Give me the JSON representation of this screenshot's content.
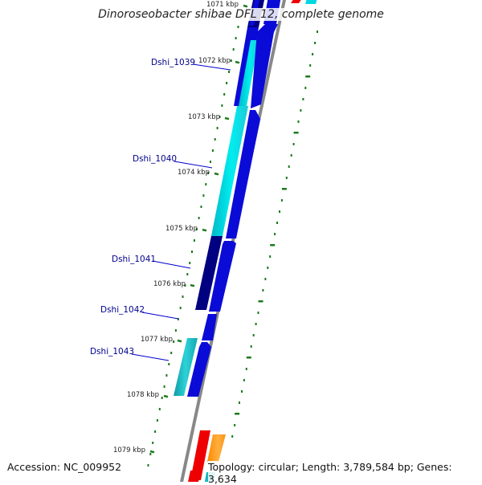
{
  "title": "Dinoroseobacter shibae DFL 12, complete genome",
  "footer": {
    "accession": "Accession: NC_009952",
    "summary": "Topology: circular; Length: 3,789,584 bp; Genes: 3,634"
  },
  "kbp_labels": [
    "1071 kbp",
    "1072 kbp",
    "1073 kbp",
    "1074 kbp",
    "1075 kbp",
    "1076 kbp",
    "1077 kbp",
    "1078 kbp",
    "1079 kbp"
  ],
  "gene_labels": [
    "Dshi_1039",
    "Dshi_1040",
    "Dshi_1041",
    "Dshi_1042",
    "Dshi_1043"
  ],
  "colors": {
    "kbp_tick": "#1a7a1a",
    "gc_dots": "#1a7a1a",
    "backbone": "#888888",
    "cds_blue": "#0b0bd8",
    "cds_navy": "#000080",
    "cds_cyan": "#00e0e8",
    "cds_teal": "#19b5be",
    "cds_red": "#ee0000",
    "cds_orange": "#ff9010",
    "gene_label": "#00008b"
  }
}
